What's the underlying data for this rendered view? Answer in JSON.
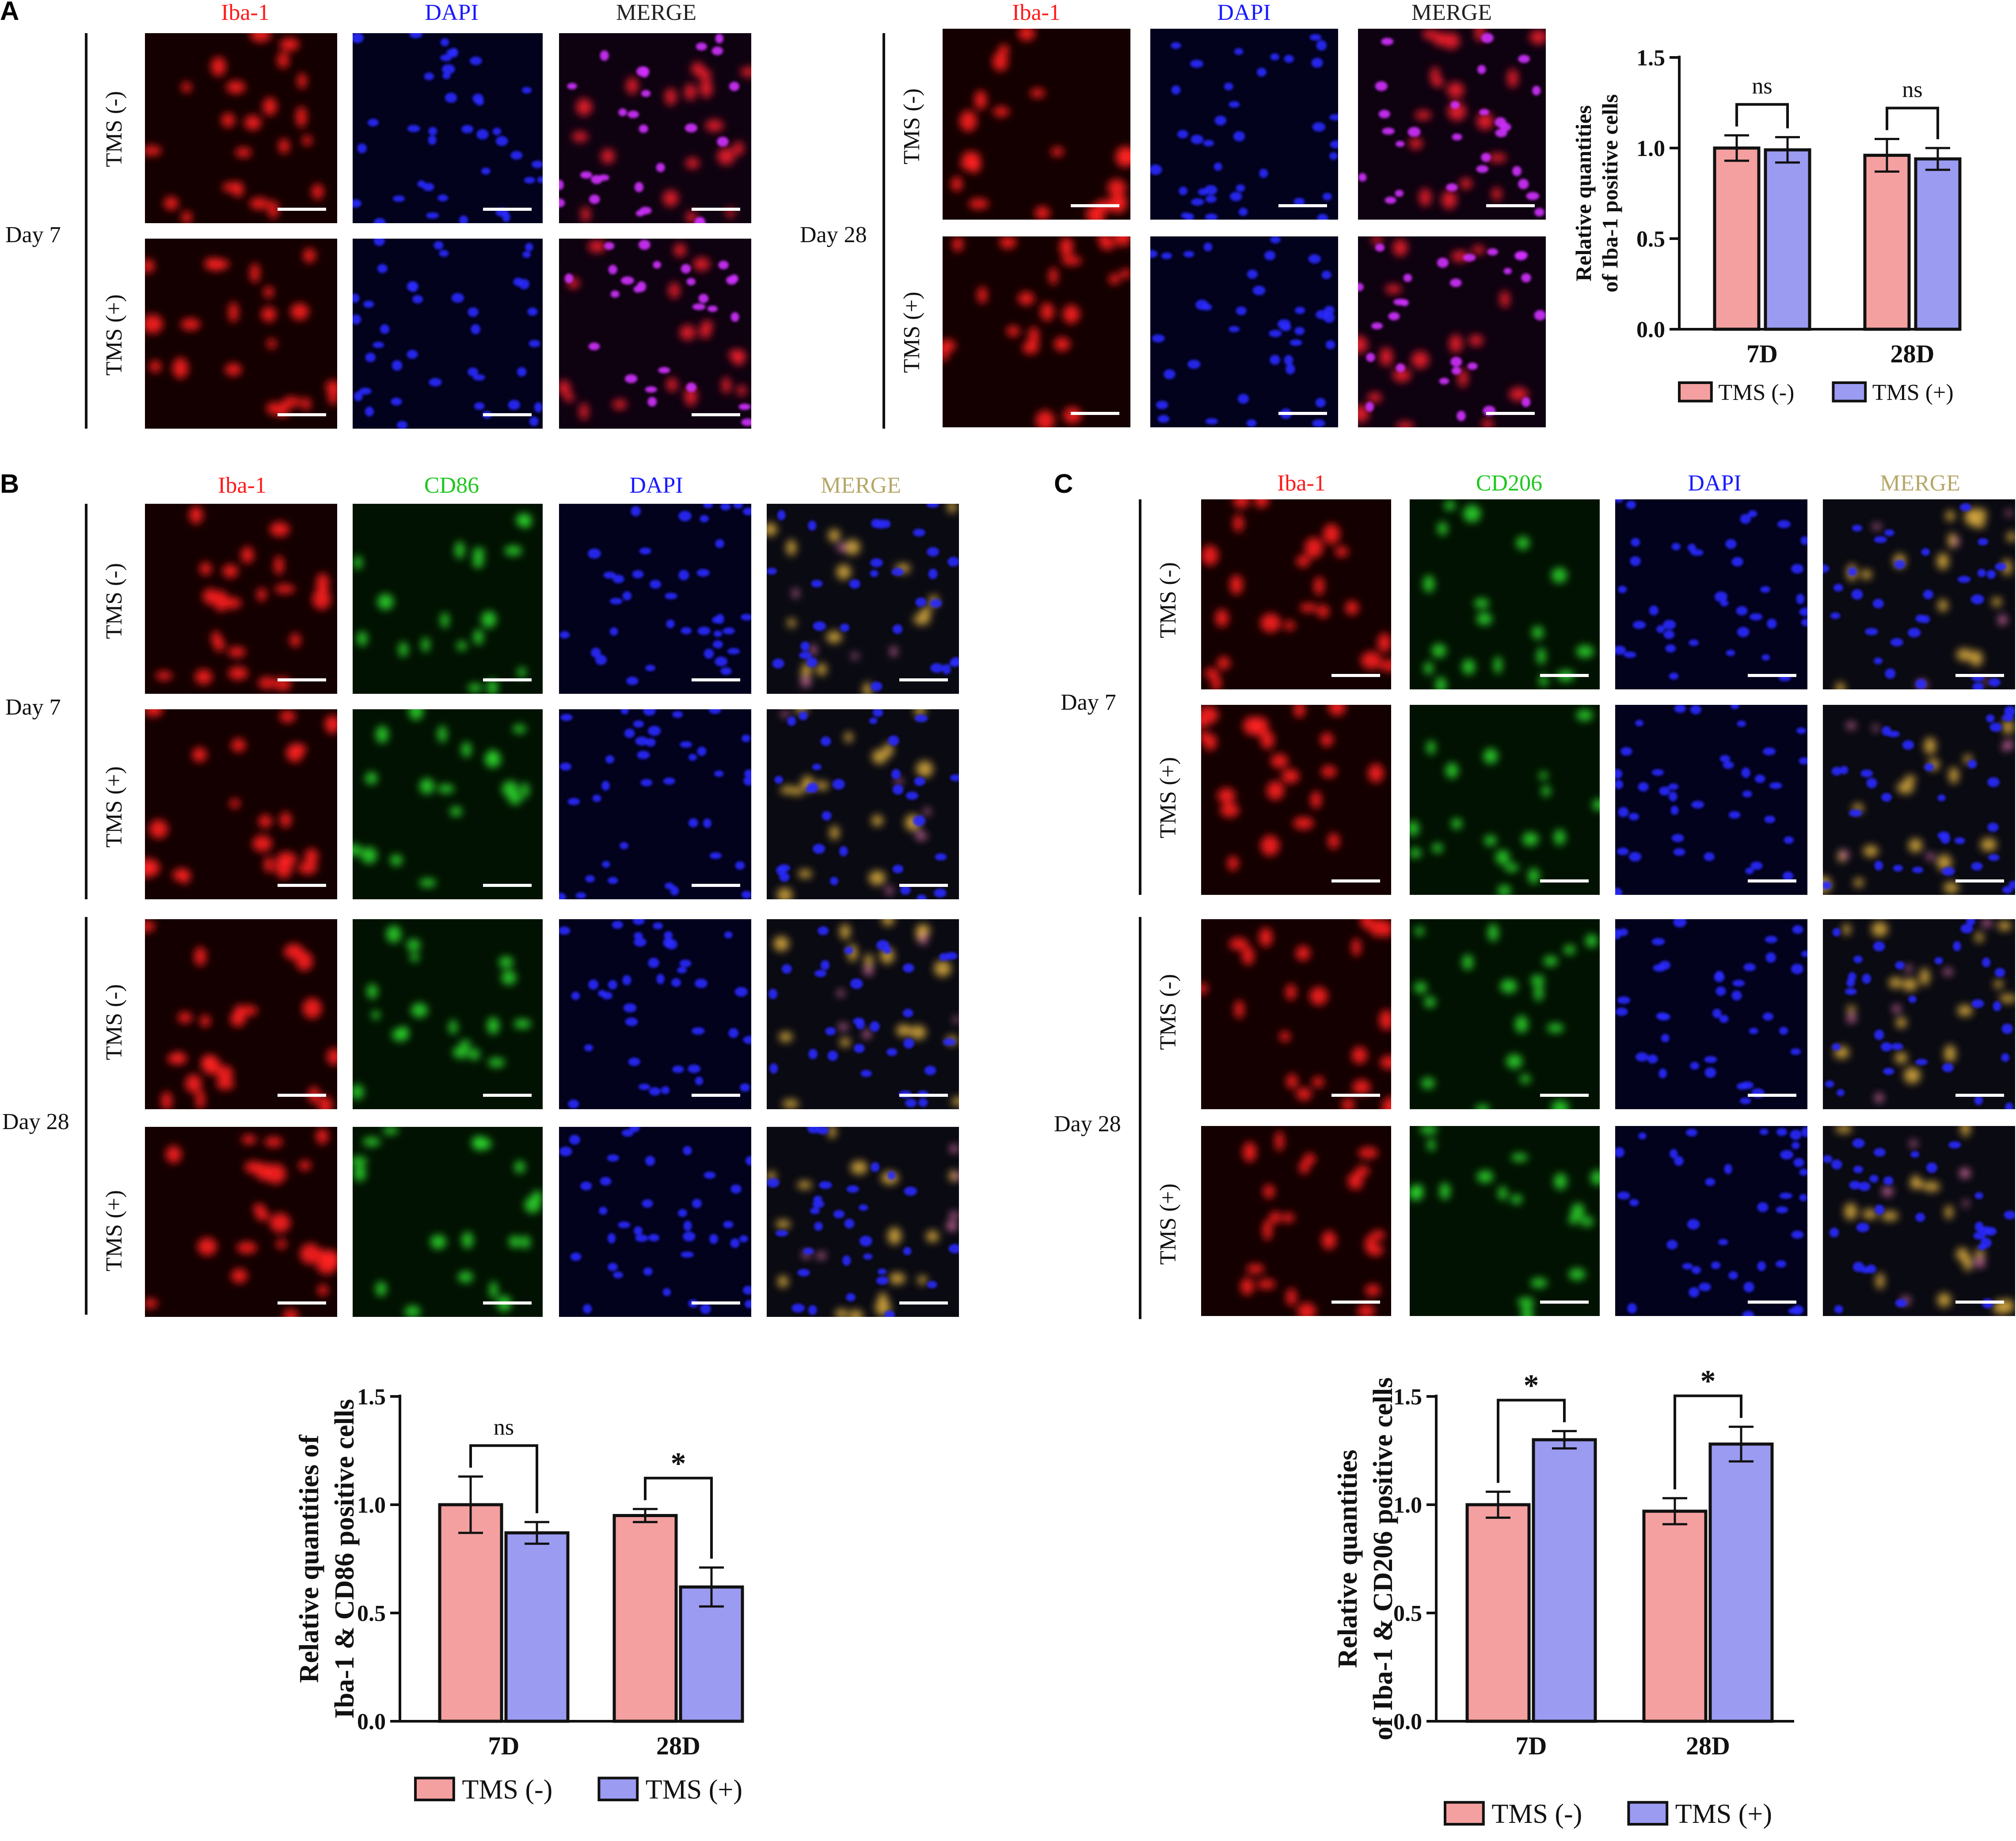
{
  "panels": [
    {
      "letter": "A",
      "stains": [
        "Iba-1",
        "DAPI",
        "MERGE"
      ],
      "days": [
        {
          "label": "Day 7",
          "conditions": [
            "TMS (-)",
            "TMS (+)"
          ]
        },
        {
          "label": "Day 28",
          "conditions": [
            "TMS (-)",
            "TMS (+)"
          ]
        }
      ]
    },
    {
      "letter": "B",
      "stains": [
        "Iba-1",
        "CD86",
        "DAPI",
        "MERGE"
      ],
      "days": [
        {
          "label": "Day 7",
          "conditions": [
            "TMS (-)",
            "TMS (+)"
          ]
        },
        {
          "label": "Day 28",
          "conditions": [
            "TMS (-)",
            "TMS (+)"
          ]
        }
      ]
    },
    {
      "letter": "C",
      "stains": [
        "Iba-1",
        "CD206",
        "DAPI",
        "MERGE"
      ],
      "days": [
        {
          "label": "Day 7",
          "conditions": [
            "TMS (-)",
            "TMS (+)"
          ]
        },
        {
          "label": "Day 28",
          "conditions": [
            "TMS (-)",
            "TMS (+)"
          ]
        }
      ]
    }
  ],
  "stain_colors": {
    "Iba-1": "#ff1a1a",
    "DAPI": "#1a1aff",
    "CD86": "#1ec81e",
    "CD206": "#1ec81e",
    "MERGE_A": "#222222",
    "MERGE_BC": "#b5a86a"
  },
  "chart_data": [
    {
      "type": "bar",
      "panel": "A",
      "categories": [
        "7D",
        "28D"
      ],
      "series": [
        {
          "name": "TMS (-)",
          "values": [
            1.0,
            0.96
          ],
          "errors": [
            0.07,
            0.09
          ],
          "color": "#f4a0a0"
        },
        {
          "name": "TMS (+)",
          "values": [
            0.99,
            0.94
          ],
          "errors": [
            0.07,
            0.06
          ],
          "color": "#9b9bf2"
        }
      ],
      "ylabel_lines": [
        "Relative quantities",
        "of Iba-1 positive cells"
      ],
      "ylim": [
        0,
        1.5
      ],
      "yticks": [
        "0.0",
        "0.5",
        "1.0",
        "1.5"
      ],
      "significance": [
        "ns",
        "ns"
      ],
      "legend_position": "bottom"
    },
    {
      "type": "bar",
      "panel": "B",
      "categories": [
        "7D",
        "28D"
      ],
      "series": [
        {
          "name": "TMS (-)",
          "values": [
            1.0,
            0.95
          ],
          "errors": [
            0.13,
            0.03
          ],
          "color": "#f4a0a0"
        },
        {
          "name": "TMS (+)",
          "values": [
            0.87,
            0.62
          ],
          "errors": [
            0.05,
            0.09
          ],
          "color": "#9b9bf2"
        }
      ],
      "ylabel_lines": [
        "Relative quantities of",
        "Iba-1 & CD86 positive cells"
      ],
      "ylim": [
        0,
        1.5
      ],
      "yticks": [
        "0.0",
        "0.5",
        "1.0",
        "1.5"
      ],
      "significance": [
        "ns",
        "*"
      ],
      "legend_position": "bottom"
    },
    {
      "type": "bar",
      "panel": "C",
      "categories": [
        "7D",
        "28D"
      ],
      "series": [
        {
          "name": "TMS (-)",
          "values": [
            1.0,
            0.97
          ],
          "errors": [
            0.06,
            0.06
          ],
          "color": "#f4a0a0"
        },
        {
          "name": "TMS (+)",
          "values": [
            1.3,
            1.28
          ],
          "errors": [
            0.04,
            0.08
          ],
          "color": "#9b9bf2"
        }
      ],
      "ylabel_lines": [
        "Relative quantities",
        "of Iba-1 & CD206 positive cells"
      ],
      "ylim": [
        0,
        1.5
      ],
      "yticks": [
        "0.0",
        "0.5",
        "1.0",
        "1.5"
      ],
      "significance": [
        "*",
        "*"
      ],
      "legend_position": "bottom"
    }
  ]
}
